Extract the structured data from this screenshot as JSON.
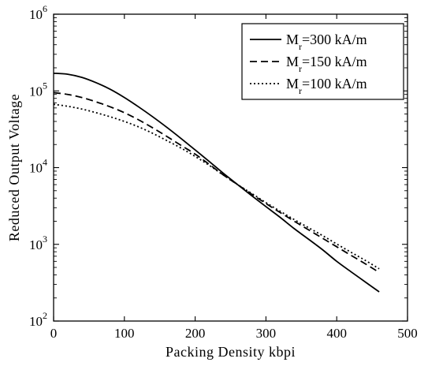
{
  "chart_data": {
    "type": "line",
    "xlabel": "Packing Density kbpi",
    "ylabel": "Reduced Output Voltage",
    "xlim": [
      0,
      500
    ],
    "ylim": [
      100,
      1000000
    ],
    "yscale": "log",
    "grid": false,
    "legend_position": "top-right",
    "x_ticks": [
      {
        "value": 0,
        "label": "0"
      },
      {
        "value": 100,
        "label": "100"
      },
      {
        "value": 200,
        "label": "200"
      },
      {
        "value": 300,
        "label": "300"
      },
      {
        "value": 400,
        "label": "400"
      },
      {
        "value": 500,
        "label": "500"
      }
    ],
    "y_ticks": [
      {
        "value": 100,
        "base": "10",
        "exp": "2"
      },
      {
        "value": 1000,
        "base": "10",
        "exp": "3"
      },
      {
        "value": 10000,
        "base": "10",
        "exp": "4"
      },
      {
        "value": 100000,
        "base": "10",
        "exp": "5"
      },
      {
        "value": 1000000,
        "base": "10",
        "exp": "6"
      }
    ],
    "series": [
      {
        "name_main": "M",
        "name_sub": "r",
        "name_rest": "=300 kA/m",
        "dash": "solid",
        "color": "#000000",
        "x": [
          0,
          20,
          40,
          60,
          80,
          100,
          120,
          140,
          160,
          180,
          200,
          220,
          240,
          260,
          280,
          300,
          320,
          340,
          360,
          380,
          400,
          420,
          440,
          460
        ],
        "y": [
          170000,
          165000,
          150000,
          128000,
          105000,
          82000,
          62000,
          46000,
          33500,
          24000,
          17000,
          12000,
          8400,
          6000,
          4300,
          3100,
          2250,
          1600,
          1170,
          850,
          600,
          440,
          325,
          240
        ]
      },
      {
        "name_main": "M",
        "name_sub": "r",
        "name_rest": "=150 kA/m",
        "dash": "dashed",
        "color": "#000000",
        "x": [
          0,
          20,
          40,
          60,
          80,
          100,
          120,
          140,
          160,
          180,
          200,
          220,
          240,
          260,
          280,
          300,
          320,
          340,
          360,
          380,
          400,
          420,
          440,
          460
        ],
        "y": [
          95000,
          90000,
          82000,
          72000,
          62000,
          52000,
          42000,
          33000,
          25500,
          19500,
          15000,
          11000,
          8000,
          6000,
          4500,
          3400,
          2600,
          2000,
          1550,
          1200,
          930,
          720,
          560,
          430
        ]
      },
      {
        "name_main": "M",
        "name_sub": "r",
        "name_rest": "=100 kA/m",
        "dash": "dotted",
        "color": "#000000",
        "x": [
          0,
          20,
          40,
          60,
          80,
          100,
          120,
          140,
          160,
          180,
          200,
          220,
          240,
          260,
          280,
          300,
          320,
          340,
          360,
          380,
          400,
          420,
          440,
          460
        ],
        "y": [
          67000,
          63000,
          58000,
          52000,
          46000,
          40000,
          34000,
          28000,
          22500,
          18000,
          14000,
          10700,
          8000,
          6000,
          4600,
          3500,
          2700,
          2100,
          1650,
          1300,
          1010,
          790,
          620,
          480
        ]
      }
    ]
  }
}
